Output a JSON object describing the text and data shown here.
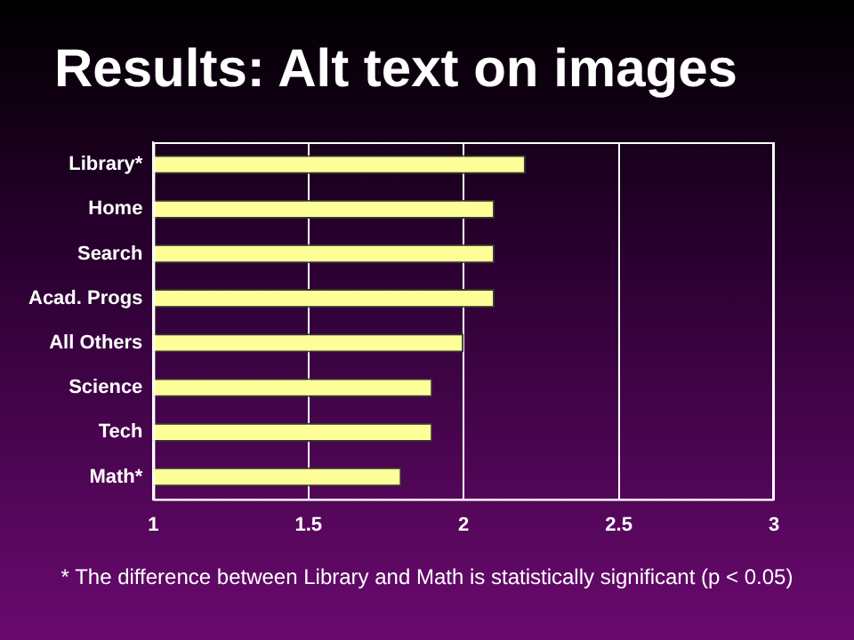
{
  "chart_data": {
    "type": "bar",
    "title": "Results: Alt text on images",
    "orientation": "horizontal",
    "categories": [
      "Library*",
      "Home",
      "Search",
      "Acad. Progs",
      "All Others",
      "Science",
      "Tech",
      "Math*"
    ],
    "values": [
      2.2,
      2.1,
      2.1,
      2.1,
      2.0,
      1.9,
      1.9,
      1.8
    ],
    "color": "#ffff99",
    "xlim": [
      1,
      3
    ],
    "xticks": [
      1,
      1.5,
      2,
      2.5,
      3
    ],
    "grid": "x",
    "annotations": [
      "* The difference between Library and Math is statistically significant (p < 0.05)"
    ]
  }
}
